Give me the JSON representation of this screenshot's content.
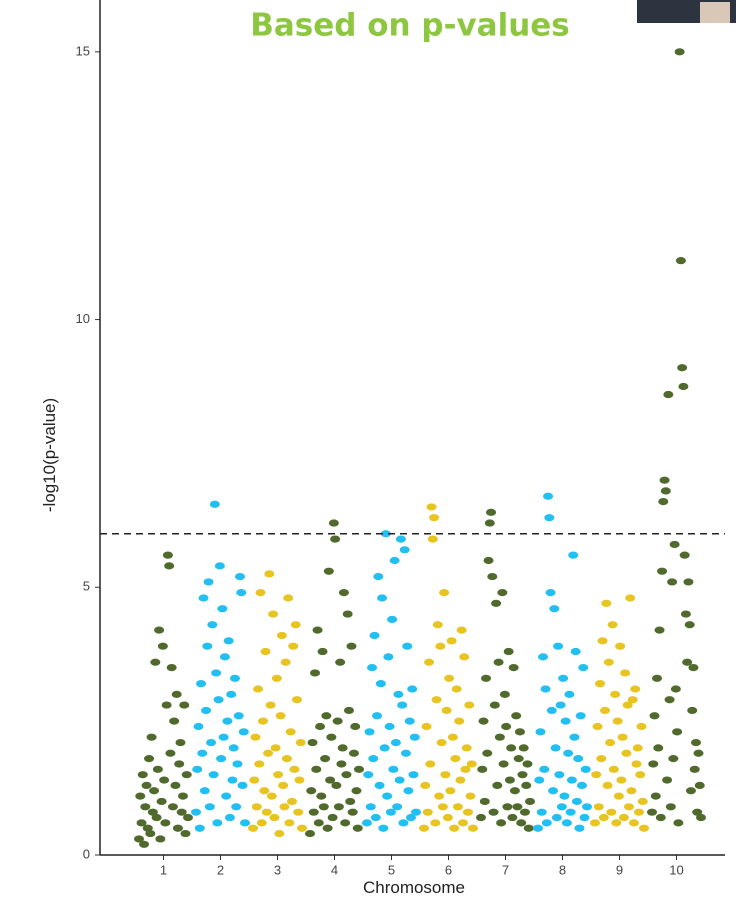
{
  "chart_data": {
    "type": "manhattan",
    "title": "Based on p-values",
    "x_label": "Chromosome",
    "y_label": "-log10(p-value)",
    "categories": [
      "1",
      "2",
      "3",
      "4",
      "5",
      "6",
      "7",
      "8",
      "9",
      "10"
    ],
    "colors": [
      "#4f6a2c",
      "#22bff2",
      "#e8c420",
      "#4f6a2c",
      "#22bff2",
      "#e8c420",
      "#4f6a2c",
      "#22bff2",
      "#e8c420",
      "#4f6a2c"
    ],
    "values": [
      [
        0.3,
        1.1,
        0.6,
        1.5,
        0.2,
        0.9,
        1.3,
        0.5,
        1.8,
        0.4,
        2.2,
        0.8,
        1.2,
        3.6,
        0.7,
        1.6,
        4.2,
        0.3,
        1.0,
        3.9,
        1.4,
        0.6,
        2.8,
        5.6,
        5.4,
        1.9,
        3.5,
        0.9,
        2.5,
        1.3,
        3.0,
        0.5,
        1.7,
        2.1,
        0.8,
        1.1,
        2.8,
        0.4,
        1.5,
        0.7
      ],
      [
        0.8,
        1.6,
        2.4,
        0.5,
        3.2,
        1.9,
        4.8,
        1.2,
        2.7,
        3.9,
        5.1,
        0.9,
        2.1,
        4.3,
        1.5,
        6.55,
        3.4,
        0.6,
        2.9,
        5.4,
        1.8,
        4.6,
        2.2,
        3.7,
        1.1,
        2.5,
        4.0,
        0.7,
        3.0,
        1.4,
        2.0,
        3.3,
        0.9,
        1.7,
        2.6,
        5.2,
        4.9,
        1.3,
        2.3,
        0.6
      ],
      [
        0.5,
        1.4,
        2.2,
        0.9,
        3.1,
        1.7,
        4.9,
        0.6,
        2.5,
        1.2,
        3.8,
        0.8,
        1.9,
        5.25,
        2.8,
        1.1,
        4.5,
        0.7,
        2.0,
        3.3,
        1.5,
        0.4,
        2.6,
        4.1,
        1.3,
        0.9,
        3.6,
        1.8,
        4.8,
        0.6,
        2.3,
        1.0,
        3.9,
        1.6,
        4.3,
        2.9,
        0.8,
        1.4,
        2.1,
        0.5
      ],
      [
        0.4,
        1.2,
        2.1,
        0.8,
        3.4,
        1.6,
        4.2,
        0.6,
        2.4,
        1.1,
        3.8,
        0.9,
        1.8,
        2.6,
        0.5,
        5.3,
        1.4,
        2.2,
        0.7,
        6.2,
        5.9,
        1.3,
        2.5,
        0.9,
        3.6,
        1.7,
        2.0,
        4.9,
        0.6,
        1.5,
        4.5,
        2.7,
        1.0,
        3.9,
        0.8,
        1.9,
        2.4,
        1.2,
        0.5,
        1.6
      ],
      [
        0.6,
        1.5,
        2.3,
        0.9,
        3.5,
        1.8,
        4.1,
        0.7,
        2.6,
        5.2,
        1.3,
        3.2,
        4.8,
        0.5,
        2.0,
        6.0,
        1.1,
        3.7,
        2.4,
        0.8,
        4.4,
        1.6,
        5.5,
        2.1,
        0.9,
        3.0,
        1.4,
        5.9,
        2.8,
        0.6,
        5.7,
        1.9,
        3.9,
        1.2,
        2.5,
        0.7,
        3.1,
        1.5,
        2.2,
        0.8
      ],
      [
        0.5,
        1.3,
        2.4,
        0.8,
        3.6,
        1.7,
        6.5,
        5.9,
        6.3,
        0.6,
        2.9,
        4.3,
        1.1,
        3.9,
        2.1,
        0.9,
        4.9,
        1.5,
        2.7,
        0.7,
        3.3,
        1.2,
        4.0,
        2.2,
        0.5,
        1.8,
        3.1,
        0.9,
        2.5,
        1.4,
        4.2,
        0.6,
        3.7,
        1.6,
        2.0,
        0.8,
        2.8,
        1.1,
        1.7,
        0.5
      ],
      [
        0.7,
        1.6,
        2.5,
        1.0,
        3.3,
        1.9,
        5.5,
        6.2,
        6.4,
        5.2,
        0.8,
        2.8,
        4.7,
        1.3,
        3.6,
        2.2,
        0.6,
        4.9,
        1.7,
        3.0,
        2.4,
        0.9,
        3.8,
        1.4,
        2.0,
        0.7,
        3.5,
        1.2,
        2.6,
        0.9,
        1.8,
        2.3,
        0.6,
        1.5,
        2.0,
        0.8,
        1.3,
        1.7,
        0.5,
        1.0
      ],
      [
        0.5,
        1.4,
        2.3,
        0.8,
        3.7,
        1.6,
        3.1,
        0.6,
        6.7,
        6.3,
        4.9,
        2.7,
        1.2,
        4.6,
        2.0,
        0.7,
        3.9,
        1.5,
        2.8,
        0.9,
        3.3,
        1.1,
        2.5,
        0.6,
        1.9,
        3.0,
        0.8,
        1.4,
        5.6,
        2.2,
        3.8,
        1.0,
        1.8,
        0.5,
        2.6,
        1.3,
        3.5,
        0.7,
        1.6,
        0.9
      ],
      [
        0.6,
        1.5,
        2.4,
        0.9,
        3.2,
        1.8,
        4.0,
        0.7,
        2.7,
        4.7,
        1.3,
        3.6,
        2.1,
        0.8,
        4.3,
        1.6,
        3.0,
        0.6,
        2.5,
        1.1,
        3.9,
        1.4,
        2.2,
        0.7,
        3.4,
        1.9,
        2.8,
        0.9,
        4.8,
        1.2,
        2.9,
        0.6,
        3.1,
        1.7,
        2.0,
        0.8,
        1.5,
        2.4,
        1.0,
        0.5
      ],
      [
        0.8,
        1.7,
        2.6,
        1.1,
        3.3,
        2.0,
        4.2,
        0.7,
        5.3,
        6.6,
        7.0,
        6.8,
        1.4,
        8.6,
        2.9,
        0.9,
        5.1,
        1.8,
        5.8,
        3.1,
        2.3,
        0.6,
        15.0,
        11.1,
        9.1,
        8.75,
        5.6,
        4.5,
        3.6,
        5.1,
        4.3,
        1.2,
        2.7,
        3.5,
        1.6,
        2.1,
        0.8,
        1.9,
        1.3,
        0.7
      ]
    ],
    "threshold": 6,
    "ylim": [
      0,
      15.8
    ],
    "yticks": [
      0,
      5,
      10,
      15
    ]
  }
}
